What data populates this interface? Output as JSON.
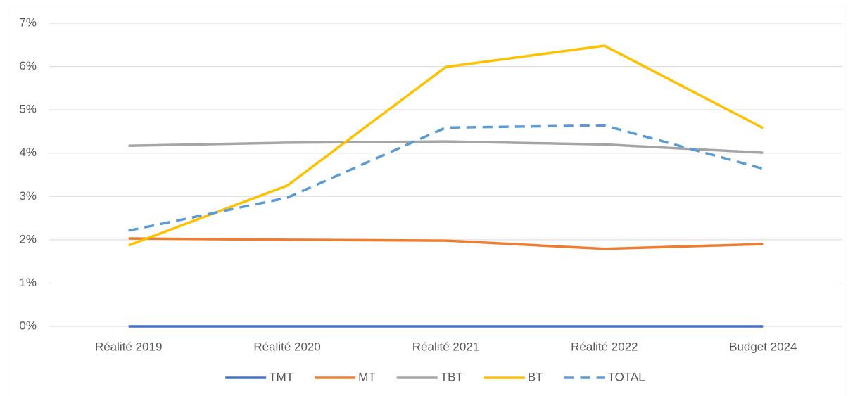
{
  "chart_data": {
    "type": "line",
    "categories": [
      "Réalité 2019",
      "Réalité 2020",
      "Réalité 2021",
      "Réalité 2022",
      "Budget 2024"
    ],
    "series": [
      {
        "name": "TMT",
        "color": "#4472c4",
        "values": [
          0,
          0,
          0,
          0,
          0
        ]
      },
      {
        "name": "MT",
        "color": "#ed7d31",
        "values": [
          2.03,
          2.0,
          1.98,
          1.79,
          1.9
        ]
      },
      {
        "name": "TBT",
        "color": "#a5a5a5",
        "values": [
          4.17,
          4.24,
          4.27,
          4.2,
          4.01
        ]
      },
      {
        "name": "BT",
        "color": "#ffc000",
        "values": [
          1.87,
          3.25,
          5.99,
          6.48,
          4.58
        ]
      },
      {
        "name": "TOTAL",
        "color": "#5b9bd5",
        "dashed": true,
        "values": [
          2.21,
          2.97,
          4.59,
          4.64,
          3.64
        ]
      }
    ],
    "ylim": [
      0,
      7
    ],
    "yticks": [
      {
        "value": 0,
        "label": "0%"
      },
      {
        "value": 1,
        "label": "1%"
      },
      {
        "value": 2,
        "label": "2%"
      },
      {
        "value": 3,
        "label": "3%"
      },
      {
        "value": 4,
        "label": "4%"
      },
      {
        "value": 5,
        "label": "5%"
      },
      {
        "value": 6,
        "label": "6%"
      },
      {
        "value": 7,
        "label": "7%"
      }
    ],
    "grid": true,
    "legend": "bottom"
  }
}
